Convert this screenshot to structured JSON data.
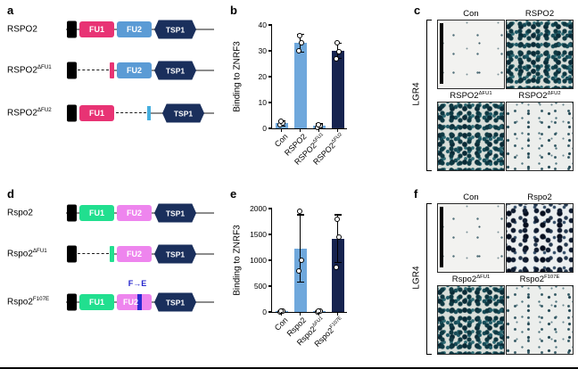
{
  "figure": {
    "background": "#ffffff",
    "colors": {
      "fu1_human": "#e83374",
      "fu2_human": "#5b9bd5",
      "fu1_mouse": "#21df8f",
      "fu2_mouse": "#ee85ee",
      "tsp1": "#1a2f5c",
      "signal_peptide": "#000000",
      "backbone": "#8c8c8c",
      "mutation_stripe": "#2b2bd0",
      "bar_light_blue": "#6fa8dc",
      "bar_dark_navy": "#16234f"
    }
  },
  "panel_a": {
    "label": "a",
    "rows": [
      {
        "name_base": "RSPO2",
        "name_sup": "",
        "fu1_label": "FU1",
        "fu2_label": "FU2",
        "tsp_label": "TSP1",
        "variant": "full"
      },
      {
        "name_base": "RSPO2",
        "name_sup": "ΔFU1",
        "fu2_label": "FU2",
        "tsp_label": "TSP1",
        "variant": "delta-fu1"
      },
      {
        "name_base": "RSPO2",
        "name_sup": "ΔFU2",
        "fu1_label": "FU1",
        "tsp_label": "TSP1",
        "variant": "delta-fu2"
      }
    ]
  },
  "panel_d": {
    "label": "d",
    "rows": [
      {
        "name_base": "Rspo2",
        "name_sup": "",
        "fu1_label": "FU1",
        "fu2_label": "FU2",
        "tsp_label": "TSP1",
        "variant": "full"
      },
      {
        "name_base": "Rspo2",
        "name_sup": "ΔFU1",
        "fu2_label": "FU2",
        "tsp_label": "TSP1",
        "variant": "delta-fu1"
      },
      {
        "name_base": "Rspo2",
        "name_sup": "F107E",
        "fu1_label": "FU1",
        "fu2_label": "FU2",
        "tsp_label": "TSP1",
        "variant": "point-mutant",
        "mutation_label": "F→E"
      }
    ]
  },
  "panel_b": {
    "label": "b"
  },
  "panel_e": {
    "label": "e"
  },
  "panel_c": {
    "label": "c",
    "side_label": "LGR4",
    "tiles": [
      {
        "name_base": "Con",
        "name_sup": "",
        "stain": "sparse",
        "scalebar": true
      },
      {
        "name_base": "RSPO2",
        "name_sup": "",
        "stain": "dense-teal",
        "scalebar": false
      },
      {
        "name_base": "RSPO2",
        "name_sup": "ΔFU1",
        "stain": "dense-teal",
        "scalebar": false
      },
      {
        "name_base": "RSPO2",
        "name_sup": "ΔFU2",
        "stain": "light",
        "scalebar": false
      }
    ]
  },
  "panel_f": {
    "label": "f",
    "side_label": "LGR4",
    "tiles": [
      {
        "name_base": "Con",
        "name_sup": "",
        "stain": "sparse",
        "scalebar": true
      },
      {
        "name_base": "Rspo2",
        "name_sup": "",
        "stain": "dense-dark",
        "scalebar": false
      },
      {
        "name_base": "Rspo2",
        "name_sup": "ΔFU1",
        "stain": "dense-teal",
        "scalebar": false
      },
      {
        "name_base": "Rspo2",
        "name_sup": "F107E",
        "stain": "light",
        "scalebar": false
      }
    ]
  },
  "chart_data": [
    {
      "id": "b",
      "type": "bar",
      "title": "",
      "ylabel": "Binding to ZNRF3",
      "xlabel": "",
      "ylim": [
        0,
        40
      ],
      "yticks": [
        0,
        10,
        20,
        30,
        40
      ],
      "grid": false,
      "legend": null,
      "categories": [
        "Con",
        "RSPO2",
        "RSPO2ΔFU1",
        "RSPO2ΔFU2"
      ],
      "categories_rich": [
        {
          "base": "Con",
          "sup": ""
        },
        {
          "base": "RSPO2",
          "sup": ""
        },
        {
          "base": "RSPO2",
          "sup": "ΔFU1"
        },
        {
          "base": "RSPO2",
          "sup": "ΔFU2"
        }
      ],
      "values": [
        2,
        33,
        1,
        30
      ],
      "errors": [
        1,
        3.5,
        0.7,
        3
      ],
      "points": [
        [
          1.4,
          2,
          2.7
        ],
        [
          30,
          33,
          36
        ],
        [
          0.5,
          1,
          1.5
        ],
        [
          27,
          29.5,
          33
        ]
      ],
      "bar_colors": [
        "#6fa8dc",
        "#6fa8dc",
        "#6fa8dc",
        "#16234f"
      ]
    },
    {
      "id": "e",
      "type": "bar",
      "title": "",
      "ylabel": "Binding to ZNRF3",
      "xlabel": "",
      "ylim": [
        0,
        2000
      ],
      "yticks": [
        0,
        500,
        1000,
        1500,
        2000
      ],
      "grid": false,
      "legend": null,
      "categories": [
        "Con",
        "Rspo2",
        "Rspo2ΔFU1",
        "Rspo2F107E"
      ],
      "categories_rich": [
        {
          "base": "Con",
          "sup": ""
        },
        {
          "base": "Rspo2",
          "sup": ""
        },
        {
          "base": "Rspo2",
          "sup": "ΔFU1"
        },
        {
          "base": "Rspo2",
          "sup": "F107E"
        }
      ],
      "values": [
        15,
        1230,
        15,
        1420
      ],
      "errors": [
        10,
        650,
        10,
        460
      ],
      "points": [
        [
          5,
          10,
          18
        ],
        [
          800,
          1000,
          1950
        ],
        [
          5,
          10,
          18
        ],
        [
          870,
          1450,
          1800
        ]
      ],
      "bar_colors": [
        "#6fa8dc",
        "#6fa8dc",
        "#6fa8dc",
        "#16234f"
      ]
    }
  ]
}
